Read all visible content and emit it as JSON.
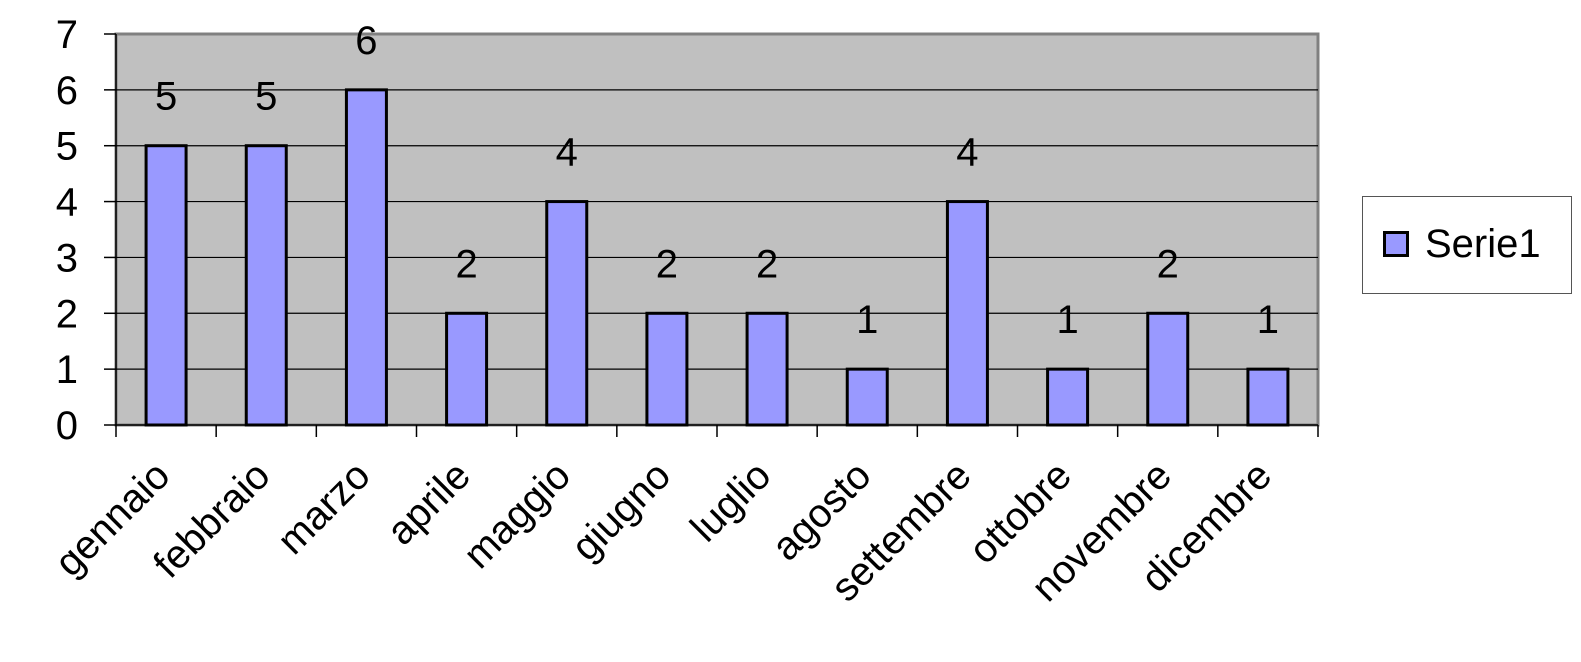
{
  "chart_data": {
    "type": "bar",
    "categories": [
      "gennaio",
      "febbraio",
      "marzo",
      "aprile",
      "maggio",
      "giugno",
      "luglio",
      "agosto",
      "settembre",
      "ottobre",
      "novembre",
      "dicembre"
    ],
    "series": [
      {
        "name": "Serie1",
        "values": [
          5,
          5,
          6,
          2,
          4,
          2,
          2,
          1,
          4,
          1,
          2,
          1
        ],
        "color": "#9999ff"
      }
    ],
    "ylim": [
      0,
      7
    ],
    "yticks": [
      0,
      1,
      2,
      3,
      4,
      5,
      6,
      7
    ],
    "grid": true,
    "plot_background": "#c0c0c0",
    "data_labels": true,
    "legend_position": "right"
  },
  "legend": {
    "label": "Serie1"
  }
}
